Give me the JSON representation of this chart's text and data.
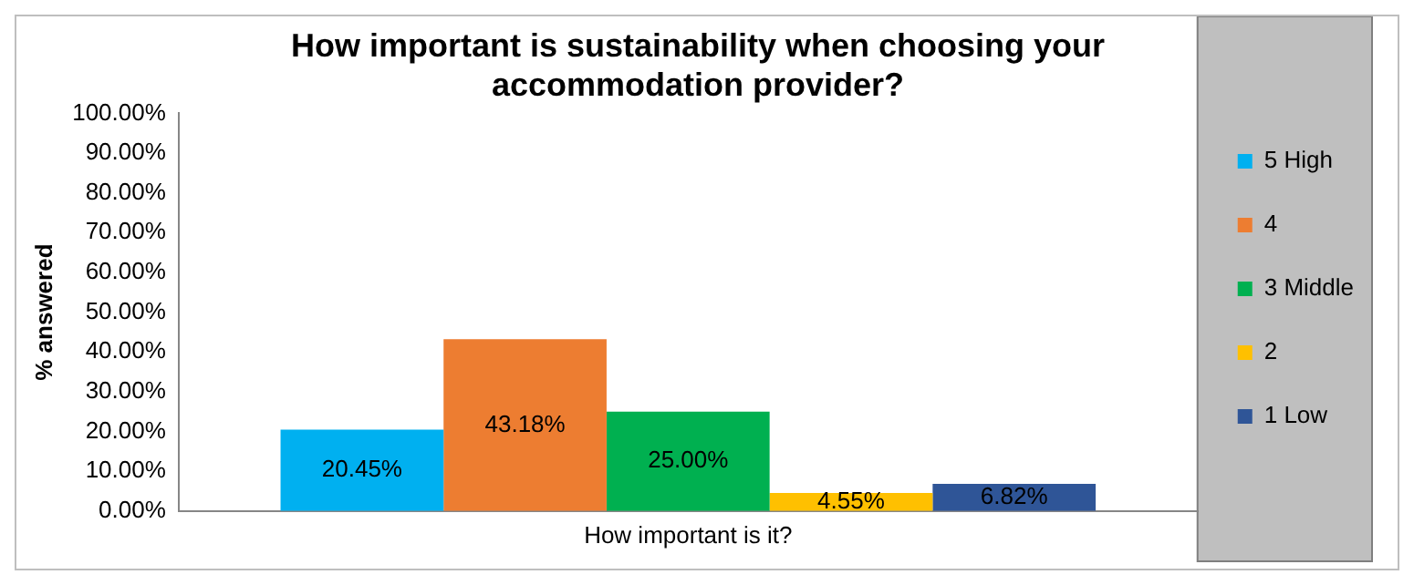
{
  "chart_data": {
    "type": "bar",
    "title": "How important is sustainability when choosing your accommodation provider?",
    "ylabel": "% answered",
    "categories": [
      "How important is it?"
    ],
    "series": [
      {
        "name": "5 High",
        "color": "#00b0f0",
        "values": [
          20.45
        ],
        "value_labels": [
          "20.45%"
        ]
      },
      {
        "name": "4",
        "color": "#ed7d31",
        "values": [
          43.18
        ],
        "value_labels": [
          "43.18%"
        ]
      },
      {
        "name": "3 Middle",
        "color": "#00b050",
        "values": [
          25.0
        ],
        "value_labels": [
          "25.00%"
        ]
      },
      {
        "name": "2",
        "color": "#ffc000",
        "values": [
          4.55
        ],
        "value_labels": [
          "4.55%"
        ]
      },
      {
        "name": "1 Low",
        "color": "#2f5597",
        "values": [
          6.82
        ],
        "value_labels": [
          "6.82%"
        ]
      }
    ],
    "ylim": [
      0,
      100
    ],
    "yticks": [
      {
        "value": 0,
        "label": "0.00%"
      },
      {
        "value": 10,
        "label": "10.00%"
      },
      {
        "value": 20,
        "label": "20.00%"
      },
      {
        "value": 30,
        "label": "30.00%"
      },
      {
        "value": 40,
        "label": "40.00%"
      },
      {
        "value": 50,
        "label": "50.00%"
      },
      {
        "value": 60,
        "label": "60.00%"
      },
      {
        "value": 70,
        "label": "70.00%"
      },
      {
        "value": 80,
        "label": "80.00%"
      },
      {
        "value": 90,
        "label": "90.00%"
      },
      {
        "value": 100,
        "label": "100.00%"
      }
    ],
    "grid": false,
    "legend": "right"
  }
}
